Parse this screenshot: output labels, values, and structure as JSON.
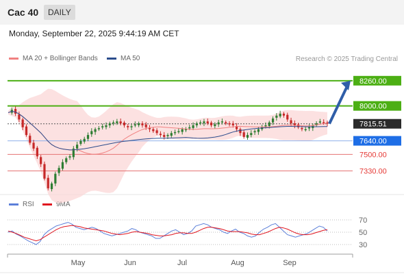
{
  "header": {
    "symbol": "Cac 40",
    "timeframe": "DAILY"
  },
  "datetime": "Monday, September 22, 2025 9:44:19 AM CET",
  "legend": {
    "ma20_label": "MA 20 + Bollinger Bands",
    "ma50_label": "MA 50",
    "credit": "Research © 2025 Trading Central",
    "rsi_label": "RSI",
    "rsi_ma_label": "9MA"
  },
  "colors": {
    "bollinger_fill": "#fbd4d4",
    "ma20": "#f08080",
    "ma50": "#2b4c8c",
    "bullish": "#2e7d32",
    "bearish": "#c62828",
    "target_green": "#4caf14",
    "pivot_blue": "#1e6ee6",
    "support_red": "#e57373",
    "arrow": "#2f5ea8",
    "rsi": "#5b7fd9",
    "rsi_ma": "#e0141e"
  },
  "chart_data": [
    {
      "type": "candlestick",
      "months": [
        "May",
        "Jun",
        "Jul",
        "Aug",
        "Sep"
      ],
      "price_ylim": [
        7100,
        8400
      ],
      "levels": [
        {
          "value": 8260.0,
          "label": "8260.00",
          "style": "target"
        },
        {
          "value": 8000.0,
          "label": "8000.00",
          "style": "target"
        },
        {
          "value": 7815.51,
          "label": "7815.51",
          "style": "last"
        },
        {
          "value": 7640.0,
          "label": "7640.00",
          "style": "pivot"
        },
        {
          "value": 7500.0,
          "label": "7500.00",
          "style": "support"
        },
        {
          "value": 7330.0,
          "label": "7330.00",
          "style": "support"
        }
      ],
      "close_series": [
        7930,
        7960,
        7920,
        7860,
        7780,
        7700,
        7620,
        7560,
        7480,
        7400,
        7250,
        7150,
        7200,
        7300,
        7360,
        7420,
        7460,
        7480,
        7560,
        7600,
        7640,
        7660,
        7700,
        7740,
        7760,
        7770,
        7790,
        7800,
        7820,
        7830,
        7840,
        7820,
        7800,
        7780,
        7790,
        7810,
        7820,
        7800,
        7780,
        7760,
        7740,
        7720,
        7700,
        7680,
        7700,
        7720,
        7730,
        7740,
        7760,
        7760,
        7780,
        7800,
        7820,
        7830,
        7840,
        7820,
        7800,
        7810,
        7830,
        7840,
        7820,
        7810,
        7800,
        7760,
        7720,
        7680,
        7700,
        7720,
        7740,
        7760,
        7780,
        7800,
        7830,
        7870,
        7900,
        7920,
        7900,
        7860,
        7820,
        7800,
        7780,
        7760,
        7760,
        7780,
        7800,
        7820,
        7840,
        7830,
        7816
      ],
      "rsi_ylim": [
        20,
        80
      ],
      "rsi_levels": [
        70,
        50,
        30
      ],
      "rsi": [
        50,
        52,
        47,
        44,
        40,
        36,
        33,
        30,
        35,
        46,
        52,
        56,
        60,
        62,
        64,
        66,
        63,
        58,
        56,
        54,
        56,
        58,
        56,
        52,
        48,
        46,
        44,
        46,
        48,
        50,
        52,
        56,
        54,
        50,
        48,
        46,
        44,
        40,
        40,
        44,
        48,
        52,
        54,
        50,
        46,
        48,
        52,
        60,
        62,
        64,
        62,
        58,
        56,
        54,
        50,
        48,
        52,
        55,
        50,
        48,
        44,
        42,
        44,
        50,
        55,
        58,
        62,
        64,
        58,
        52,
        46,
        44,
        42,
        44,
        46,
        48,
        52,
        56,
        60,
        58,
        52
      ],
      "rsi_ma": [
        52,
        50,
        48,
        45,
        42,
        40,
        38,
        36,
        38,
        42,
        46,
        50,
        54,
        57,
        59,
        60,
        61,
        60,
        59,
        57,
        56,
        55,
        54,
        53,
        52,
        50,
        48,
        47,
        46,
        47,
        48,
        50,
        51,
        50,
        49,
        48,
        46,
        45,
        44,
        44,
        45,
        46,
        48,
        49,
        49,
        48,
        48,
        50,
        53,
        56,
        58,
        58,
        57,
        56,
        54,
        52,
        51,
        51,
        51,
        50,
        49,
        47,
        46,
        46,
        48,
        50,
        53,
        56,
        58,
        57,
        55,
        52,
        49,
        47,
        46,
        46,
        47,
        49,
        51,
        53,
        54
      ]
    }
  ]
}
